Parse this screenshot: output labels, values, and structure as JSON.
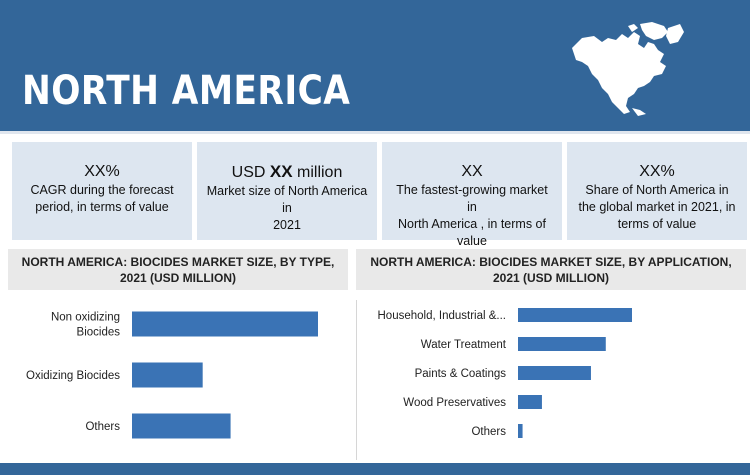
{
  "header": {
    "title": "NORTH AMERICA",
    "map_icon": "north-america-map-icon",
    "bg_color": "#336699"
  },
  "stats": [
    {
      "value": "XX%",
      "value_bold": "",
      "value_suffix": "",
      "desc_lines": [
        "CAGR during the forecast",
        "period, in terms of value"
      ]
    },
    {
      "value": "USD ",
      "value_bold": "XX",
      "value_suffix": " million",
      "desc_lines": [
        "Market size of North America in",
        "2021"
      ]
    },
    {
      "value": "XX",
      "value_bold": "",
      "value_suffix": "",
      "desc_lines": [
        "The fastest-growing market in",
        "North America , in terms of",
        "value"
      ]
    },
    {
      "value": "XX%",
      "value_bold": "",
      "value_suffix": "",
      "desc_lines": [
        "Share of North America in",
        "the global market in 2021, in",
        "terms of value"
      ]
    }
  ],
  "chart_data": [
    {
      "type": "bar",
      "orientation": "horizontal",
      "title_lines": [
        "NORTH AMERICA: BIOCIDES MARKET SIZE, BY TYPE,",
        "2021 (USD MILLION)"
      ],
      "categories": [
        [
          "Non oxidizing",
          "Biocides"
        ],
        [
          "Oxidizing Biocides"
        ],
        [
          "Others"
        ]
      ],
      "values": [
        100,
        38,
        53
      ],
      "xlim": [
        0,
        100
      ],
      "bar_color": "#3a73b5",
      "grid": false
    },
    {
      "type": "bar",
      "orientation": "horizontal",
      "title_lines": [
        "NORTH AMERICA: BIOCIDES MARKET SIZE, BY APPLICATION,",
        "2021 (USD MILLION)"
      ],
      "categories": [
        [
          "Household, Industrial &..."
        ],
        [
          "Water Treatment"
        ],
        [
          "Paints & Coatings"
        ],
        [
          "Wood Preservatives"
        ],
        [
          "Others"
        ]
      ],
      "values": [
        100,
        77,
        64,
        21,
        4
      ],
      "xlim": [
        0,
        100
      ],
      "bar_color": "#3a73b5",
      "grid": false
    }
  ]
}
